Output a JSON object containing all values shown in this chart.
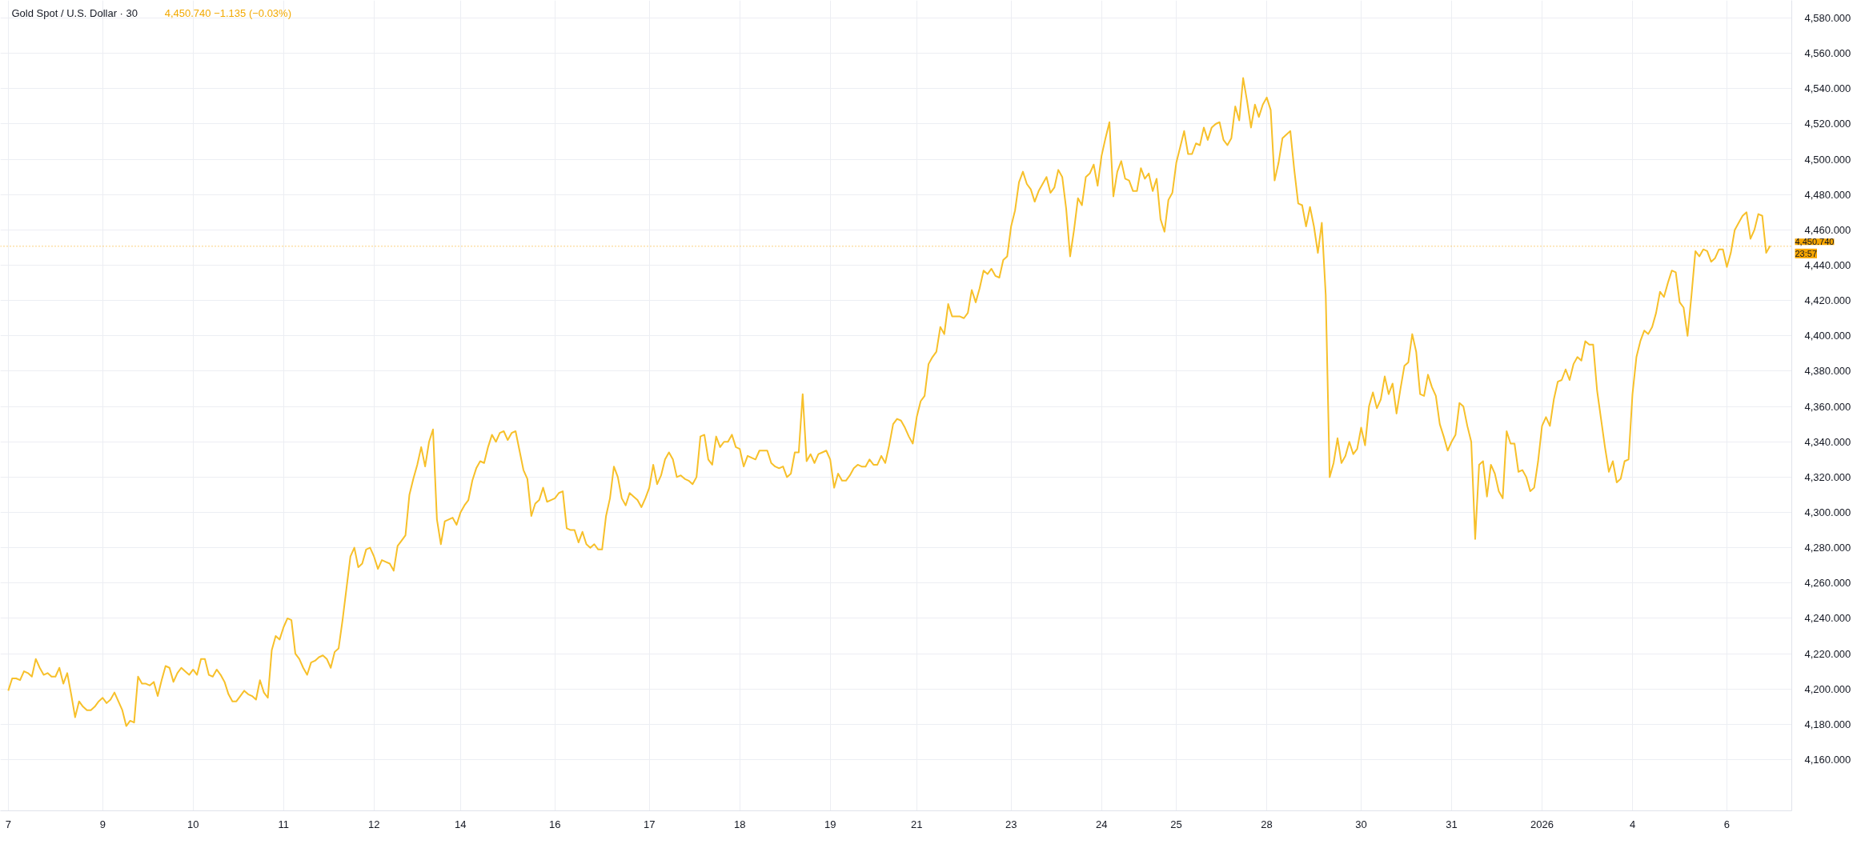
{
  "chart_data": {
    "type": "line",
    "title": "Gold Spot / U.S. Dollar · 30",
    "subtitle": "4,450.740 −1.135 (−0.03%)",
    "annotations": [
      "23:57"
    ],
    "ylim": [
      4131,
      4590
    ],
    "yticks": [
      {
        "value": 4160,
        "label": "4,160.000"
      },
      {
        "value": 4180,
        "label": "4,180.000"
      },
      {
        "value": 4200,
        "label": "4,200.000"
      },
      {
        "value": 4220,
        "label": "4,220.000"
      },
      {
        "value": 4240,
        "label": "4,240.000"
      },
      {
        "value": 4260,
        "label": "4,260.000"
      },
      {
        "value": 4280,
        "label": "4,280.000"
      },
      {
        "value": 4300,
        "label": "4,300.000"
      },
      {
        "value": 4320,
        "label": "4,320.000"
      },
      {
        "value": 4340,
        "label": "4,340.000"
      },
      {
        "value": 4360,
        "label": "4,360.000"
      },
      {
        "value": 4380,
        "label": "4,380.000"
      },
      {
        "value": 4400,
        "label": "4,400.000"
      },
      {
        "value": 4420,
        "label": "4,420.000"
      },
      {
        "value": 4440,
        "label": "4,440.000"
      },
      {
        "value": 4460,
        "label": "4,460.000"
      },
      {
        "value": 4480,
        "label": "4,480.000"
      },
      {
        "value": 4500,
        "label": "4,500.000"
      },
      {
        "value": 4520,
        "label": "4,520.000"
      },
      {
        "value": 4540,
        "label": "4,540.000"
      },
      {
        "value": 4560,
        "label": "4,560.000"
      },
      {
        "value": 4580,
        "label": "4,580.000"
      }
    ],
    "grid": true,
    "ref_lines": [
      {
        "axis": "y",
        "value": 4450.74,
        "label": "4,450.740",
        "color": "#f7a600",
        "line_style": "dotted"
      }
    ],
    "categories": [
      "7",
      null,
      null,
      null,
      null,
      null,
      null,
      null,
      null,
      null,
      null,
      null,
      null,
      null,
      null,
      null,
      null,
      null,
      null,
      null,
      null,
      null,
      null,
      null,
      "9",
      null,
      null,
      null,
      null,
      null,
      null,
      null,
      null,
      null,
      null,
      null,
      null,
      null,
      null,
      null,
      null,
      null,
      null,
      null,
      null,
      null,
      null,
      "10",
      null,
      null,
      null,
      null,
      null,
      null,
      null,
      null,
      null,
      null,
      null,
      null,
      null,
      null,
      null,
      null,
      null,
      null,
      null,
      null,
      null,
      null,
      "11",
      null,
      null,
      null,
      null,
      null,
      null,
      null,
      null,
      null,
      null,
      null,
      null,
      null,
      null,
      null,
      null,
      null,
      null,
      null,
      null,
      null,
      null,
      "12",
      null,
      null,
      null,
      null,
      null,
      null,
      null,
      null,
      null,
      null,
      null,
      null,
      null,
      null,
      null,
      null,
      null,
      null,
      null,
      null,
      null,
      "14",
      null,
      null,
      null,
      null,
      null,
      null,
      null,
      null,
      null,
      null,
      null,
      null,
      null,
      null,
      null,
      null,
      null,
      null,
      null,
      null,
      null,
      null,
      null,
      "16",
      null,
      null,
      null,
      null,
      null,
      null,
      null,
      null,
      null,
      null,
      null,
      null,
      null,
      null,
      null,
      null,
      null,
      null,
      null,
      null,
      null,
      null,
      null,
      "17",
      null,
      null,
      null,
      null,
      null,
      null,
      null,
      null,
      null,
      null,
      null,
      null,
      null,
      null,
      null,
      null,
      null,
      null,
      null,
      null,
      null,
      null,
      "18",
      null,
      null,
      null,
      null,
      null,
      null,
      null,
      null,
      null,
      null,
      null,
      null,
      null,
      null,
      null,
      null,
      null,
      null,
      null,
      null,
      null,
      null,
      "19",
      null,
      null,
      null,
      null,
      null,
      null,
      null,
      null,
      null,
      null,
      null,
      null,
      null,
      null,
      null,
      null,
      null,
      null,
      null,
      null,
      null,
      "21",
      null,
      null,
      null,
      null,
      null,
      null,
      null,
      null,
      null,
      null,
      null,
      null,
      null,
      null,
      null,
      null,
      null,
      null,
      null,
      null,
      null,
      null,
      null,
      "23",
      null,
      null,
      null,
      null,
      null,
      null,
      null,
      null,
      null,
      null,
      null,
      null,
      null,
      null,
      null,
      null,
      null,
      null,
      null,
      null,
      null,
      null,
      "24",
      null,
      null,
      null,
      null,
      null,
      null,
      null,
      null,
      null,
      null,
      null,
      null,
      null,
      null,
      null,
      null,
      null,
      null,
      "25",
      null,
      null,
      null,
      null,
      null,
      null,
      null,
      null,
      null,
      null,
      null,
      null,
      null,
      null,
      null,
      null,
      null,
      null,
      null,
      null,
      null,
      null,
      "28",
      null,
      null,
      null,
      null,
      null,
      null,
      null,
      null,
      null,
      null,
      null,
      null,
      null,
      null,
      null,
      null,
      null,
      null,
      null,
      null,
      null,
      null,
      null,
      "30",
      null,
      null,
      null,
      null,
      null,
      null,
      null,
      null,
      null,
      null,
      null,
      null,
      null,
      null,
      null,
      null,
      null,
      null,
      null,
      null,
      null,
      null,
      "31",
      null,
      null,
      null,
      null,
      null,
      null,
      null,
      null,
      null,
      null,
      null,
      null,
      null,
      null,
      null,
      null,
      null,
      null,
      null,
      null,
      null,
      null,
      "2026",
      null,
      null,
      null,
      null,
      null,
      null,
      null,
      null,
      null,
      null,
      null,
      null,
      null,
      null,
      null,
      null,
      null,
      null,
      null,
      null,
      null,
      null,
      "4",
      null,
      null,
      null,
      null,
      null,
      null,
      null,
      null,
      null,
      null,
      null,
      null,
      null,
      null,
      null,
      null,
      null,
      null,
      null,
      null,
      null,
      null,
      null,
      "6",
      null,
      null,
      null,
      null,
      null,
      null,
      null,
      null,
      null,
      null,
      null
    ],
    "series": [
      {
        "color": "#f7c02a",
        "values": [
          4199,
          4206,
          4206,
          4205,
          4210,
          4209,
          4207,
          4217,
          4212,
          4208,
          4209,
          4207,
          4207,
          4212,
          4203,
          4209,
          4197,
          4184,
          4193,
          4190,
          4188,
          4188,
          4190,
          4193,
          4195,
          4192,
          4194,
          4198,
          4193,
          4188,
          4179,
          4182,
          4181,
          4207,
          4203,
          4203,
          4202,
          4204,
          4196,
          4205,
          4213,
          4212,
          4204,
          4209,
          4212,
          4210,
          4208,
          4211,
          4208,
          4217,
          4217,
          4208,
          4207,
          4211,
          4208,
          4204,
          4197,
          4193,
          4193,
          4196,
          4199,
          4197,
          4196,
          4194,
          4205,
          4198,
          4195,
          4222,
          4230,
          4228,
          4235,
          4240,
          4239,
          4220,
          4217,
          4212,
          4208,
          4215,
          4216,
          4218,
          4219,
          4217,
          4212,
          4221,
          4223,
          4239,
          4257,
          4275,
          4280,
          4269,
          4271,
          4279,
          4280,
          4275,
          4268,
          4273,
          4272,
          4271,
          4267,
          4281,
          4284,
          4287,
          4310,
          4319,
          4327,
          4337,
          4326,
          4340,
          4347,
          4296,
          4282,
          4295,
          4296,
          4297,
          4293,
          4300,
          4304,
          4307,
          4318,
          4325,
          4329,
          4328,
          4337,
          4344,
          4340,
          4345,
          4346,
          4341,
          4345,
          4346,
          4335,
          4324,
          4319,
          4298,
          4305,
          4307,
          4314,
          4306,
          4307,
          4308,
          4311,
          4312,
          4291,
          4290,
          4290,
          4283,
          4289,
          4282,
          4280,
          4282,
          4279,
          4279,
          4298,
          4308,
          4326,
          4320,
          4308,
          4304,
          4311,
          4309,
          4307,
          4303,
          4308,
          4314,
          4327,
          4316,
          4321,
          4330,
          4334,
          4330,
          4320,
          4321,
          4319,
          4318,
          4316,
          4320,
          4343,
          4344,
          4330,
          4327,
          4343,
          4337,
          4340,
          4340,
          4344,
          4337,
          4336,
          4326,
          4332,
          4331,
          4330,
          4335,
          4335,
          4335,
          4328,
          4326,
          4325,
          4326,
          4320,
          4322,
          4334,
          4334,
          4367,
          4329,
          4333,
          4328,
          4333,
          4334,
          4335,
          4330,
          4314,
          4322,
          4318,
          4318,
          4321,
          4325,
          4327,
          4326,
          4326,
          4330,
          4327,
          4327,
          4332,
          4328,
          4338,
          4350,
          4353,
          4352,
          4348,
          4343,
          4339,
          4354,
          4363,
          4366,
          4384,
          4388,
          4391,
          4405,
          4401,
          4418,
          4411,
          4411,
          4411,
          4410,
          4413,
          4426,
          4419,
          4427,
          4437,
          4435,
          4438,
          4434,
          4433,
          4443,
          4445,
          4462,
          4471,
          4487,
          4493,
          4486,
          4483,
          4476,
          4482,
          4486,
          4490,
          4481,
          4484,
          4494,
          4490,
          4472,
          4445,
          4460,
          4478,
          4474,
          4490,
          4492,
          4497,
          4485,
          4502,
          4512,
          4521,
          4479,
          4493,
          4499,
          4489,
          4488,
          4482,
          4482,
          4495,
          4489,
          4492,
          4482,
          4489,
          4466,
          4459,
          4477,
          4481,
          4498,
          4507,
          4516,
          4503,
          4503,
          4509,
          4508,
          4518,
          4511,
          4518,
          4520,
          4521,
          4511,
          4508,
          4512,
          4530,
          4522,
          4546,
          4533,
          4518,
          4531,
          4524,
          4531,
          4535,
          4528,
          4488,
          4498,
          4512,
          4514,
          4516,
          4494,
          4475,
          4474,
          4462,
          4473,
          4462,
          4447,
          4464,
          4423,
          4320,
          4328,
          4342,
          4328,
          4332,
          4340,
          4333,
          4336,
          4348,
          4338,
          4360,
          4368,
          4359,
          4364,
          4377,
          4367,
          4373,
          4356,
          4370,
          4383,
          4385,
          4401,
          4391,
          4367,
          4366,
          4378,
          4371,
          4366,
          4350,
          4343,
          4335,
          4340,
          4344,
          4362,
          4360,
          4349,
          4340,
          4285,
          4327,
          4329,
          4309,
          4327,
          4322,
          4312,
          4308,
          4346,
          4339,
          4339,
          4323,
          4324,
          4320,
          4312,
          4314,
          4329,
          4349,
          4354,
          4349,
          4364,
          4374,
          4375,
          4381,
          4375,
          4384,
          4388,
          4386,
          4397,
          4395,
          4395,
          4369,
          4353,
          4337,
          4323,
          4329,
          4317,
          4319,
          4329,
          4330,
          4367,
          4388,
          4397,
          4403,
          4401,
          4405,
          4413,
          4425,
          4422,
          4430,
          4437,
          4436,
          4419,
          4416,
          4400,
          4423,
          4448,
          4445,
          4449,
          4448,
          4442,
          4444,
          4449,
          4449,
          4439,
          4447,
          4460,
          4464,
          4468,
          4470,
          4455,
          4460,
          4469,
          4468,
          4447,
          4451
        ]
      }
    ]
  }
}
